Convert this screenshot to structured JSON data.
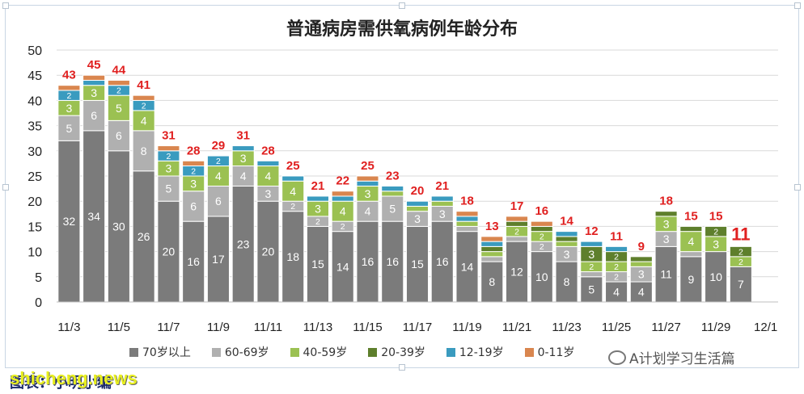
{
  "page": {
    "caption": "图表：小明小编",
    "watermark": "shicheng.news",
    "wechat_label": "A计划学习生活篇"
  },
  "colors": {
    "70岁以上": "#7b7b7b",
    "60-69岁": "#b0b0b0",
    "40-59岁": "#9bc152",
    "20-39岁": "#5e7f2c",
    "12-19岁": "#3a9bbf",
    "0-11岁": "#d9864f",
    "total_label": "#e02020"
  },
  "chart_data": {
    "type": "bar",
    "stacked": true,
    "title": "普通病房需供氧病例年龄分布",
    "xlabel": "",
    "ylabel": "",
    "ylim": [
      0,
      50
    ],
    "yticks": [
      0,
      5,
      10,
      15,
      20,
      25,
      30,
      35,
      40,
      45,
      50
    ],
    "grid": true,
    "legend_position": "bottom",
    "categories": [
      "11/3",
      "11/4",
      "11/5",
      "11/6",
      "11/7",
      "11/8",
      "11/9",
      "11/10",
      "11/11",
      "11/12",
      "11/13",
      "11/14",
      "11/15",
      "11/16",
      "11/17",
      "11/18",
      "11/19",
      "11/20",
      "11/21",
      "11/22",
      "11/23",
      "11/24",
      "11/25",
      "11/26",
      "11/27",
      "11/28",
      "11/29",
      "11/30"
    ],
    "xtick_labels": [
      "11/3",
      "11/5",
      "11/7",
      "11/9",
      "11/11",
      "11/13",
      "11/15",
      "11/17",
      "11/19",
      "11/21",
      "11/23",
      "11/25",
      "11/27",
      "11/29",
      "12/1"
    ],
    "series": [
      {
        "name": "70岁以上",
        "values": [
          32,
          34,
          30,
          26,
          20,
          16,
          17,
          23,
          20,
          18,
          15,
          14,
          16,
          16,
          15,
          16,
          14,
          8,
          12,
          10,
          8,
          5,
          4,
          4,
          11,
          9,
          10,
          7
        ]
      },
      {
        "name": "60-69岁",
        "values": [
          5,
          6,
          6,
          8,
          5,
          6,
          6,
          4,
          3,
          2,
          2,
          2,
          4,
          5,
          3,
          3,
          1,
          1,
          1,
          2,
          3,
          1,
          2,
          3,
          3,
          1,
          0,
          0
        ]
      },
      {
        "name": "40-59岁",
        "values": [
          3,
          3,
          5,
          4,
          3,
          3,
          4,
          3,
          4,
          4,
          3,
          4,
          3,
          1,
          1,
          1,
          1,
          1,
          2,
          2,
          1,
          2,
          2,
          1,
          3,
          4,
          3,
          2
        ]
      },
      {
        "name": "20-39岁",
        "values": [
          0,
          0,
          0,
          0,
          0,
          0,
          0,
          0,
          0,
          0,
          0,
          0,
          0,
          0,
          0,
          0,
          0,
          1,
          1,
          1,
          1,
          3,
          2,
          1,
          1,
          1,
          2,
          2
        ]
      },
      {
        "name": "12-19岁",
        "values": [
          2,
          1,
          2,
          2,
          2,
          2,
          2,
          1,
          1,
          1,
          1,
          1,
          1,
          1,
          1,
          1,
          1,
          1,
          0,
          0,
          1,
          1,
          1,
          0,
          0,
          0,
          0,
          0
        ]
      },
      {
        "name": "0-11岁",
        "values": [
          1,
          1,
          1,
          1,
          1,
          1,
          0,
          0,
          0,
          0,
          0,
          1,
          1,
          0,
          0,
          0,
          1,
          1,
          1,
          1,
          0,
          0,
          0,
          0,
          0,
          0,
          0,
          0
        ]
      }
    ],
    "totals": [
      43,
      45,
      44,
      41,
      31,
      28,
      29,
      31,
      28,
      25,
      21,
      22,
      25,
      23,
      20,
      21,
      18,
      13,
      17,
      16,
      14,
      12,
      11,
      9,
      18,
      15,
      15,
      11
    ]
  }
}
